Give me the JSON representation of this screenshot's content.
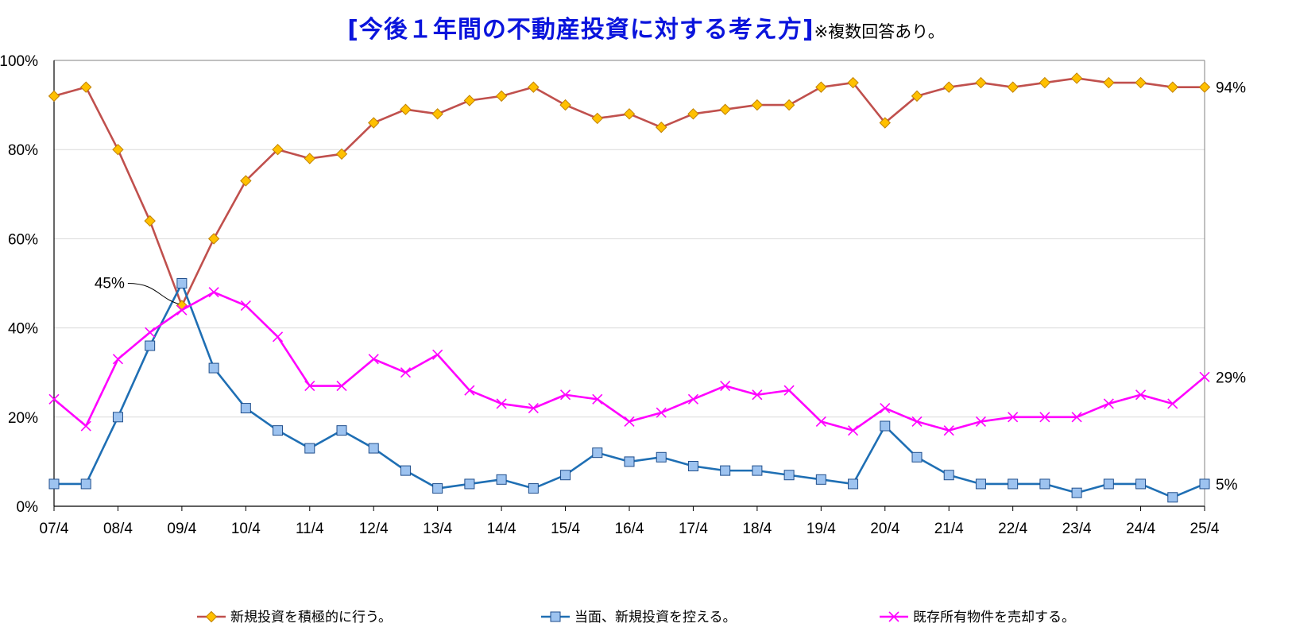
{
  "title": {
    "main": "[今後１年間の不動産投資に対する考え方]",
    "note": "※複数回答あり。"
  },
  "chart_data": {
    "type": "line",
    "title": "[今後１年間の不動産投資に対する考え方]※複数回答あり。",
    "xlabel": "",
    "ylabel": "",
    "ylim": [
      0,
      100
    ],
    "y_ticks": [
      "0%",
      "20%",
      "40%",
      "60%",
      "80%",
      "100%"
    ],
    "x_tick_labels": [
      "07/4",
      "08/4",
      "09/4",
      "10/4",
      "11/4",
      "12/4",
      "13/4",
      "14/4",
      "15/4",
      "16/4",
      "17/4",
      "18/4",
      "19/4",
      "20/4",
      "21/4",
      "22/4",
      "23/4",
      "24/4",
      "25/4"
    ],
    "x": [
      "07/4",
      "07/10",
      "08/4",
      "08/10",
      "09/4",
      "09/10",
      "10/4",
      "10/10",
      "11/4",
      "11/10",
      "12/4",
      "12/10",
      "13/4",
      "13/10",
      "14/4",
      "14/10",
      "15/4",
      "15/10",
      "16/4",
      "16/10",
      "17/4",
      "17/10",
      "18/4",
      "18/10",
      "19/4",
      "19/10",
      "20/4",
      "20/10",
      "21/4",
      "21/10",
      "22/4",
      "22/10",
      "23/4",
      "23/10",
      "24/4",
      "24/10",
      "25/4"
    ],
    "grid": true,
    "legend_position": "bottom",
    "series": [
      {
        "name": "新規投資を積極的に行う。",
        "color": "#c0504d",
        "marker": "diamond",
        "marker_color": "#ffc000",
        "values": [
          92,
          94,
          80,
          64,
          45,
          60,
          73,
          80,
          78,
          79,
          86,
          89,
          88,
          91,
          92,
          94,
          90,
          87,
          88,
          85,
          88,
          89,
          90,
          90,
          94,
          95,
          86,
          92,
          94,
          95,
          94,
          95,
          96,
          95,
          95,
          94,
          94
        ]
      },
      {
        "name": "当面、新規投資を控える。",
        "color": "#1f6fb4",
        "marker": "square",
        "marker_color": "#9dc3f0",
        "values": [
          5,
          5,
          20,
          36,
          50,
          31,
          22,
          17,
          13,
          17,
          13,
          8,
          4,
          5,
          6,
          4,
          7,
          12,
          10,
          11,
          9,
          8,
          8,
          7,
          6,
          5,
          18,
          11,
          7,
          5,
          5,
          5,
          3,
          5,
          5,
          2,
          5
        ]
      },
      {
        "name": "既存所有物件を売却する。",
        "color": "#ff00ff",
        "marker": "x",
        "marker_color": "#ff00ff",
        "values": [
          24,
          18,
          33,
          39,
          44,
          48,
          45,
          38,
          27,
          27,
          33,
          30,
          34,
          26,
          23,
          22,
          25,
          24,
          19,
          21,
          24,
          27,
          25,
          26,
          19,
          17,
          22,
          19,
          17,
          19,
          20,
          20,
          20,
          23,
          25,
          23,
          29
        ]
      }
    ],
    "annotations": [
      {
        "text": "45%",
        "x": "09/4",
        "y": 45,
        "series": 0
      },
      {
        "text": "94%",
        "x": "25/4",
        "y": 94,
        "series": 0
      },
      {
        "text": "29%",
        "x": "25/4",
        "y": 29,
        "series": 2
      },
      {
        "text": "5%",
        "x": "25/4",
        "y": 5,
        "series": 1
      }
    ]
  }
}
